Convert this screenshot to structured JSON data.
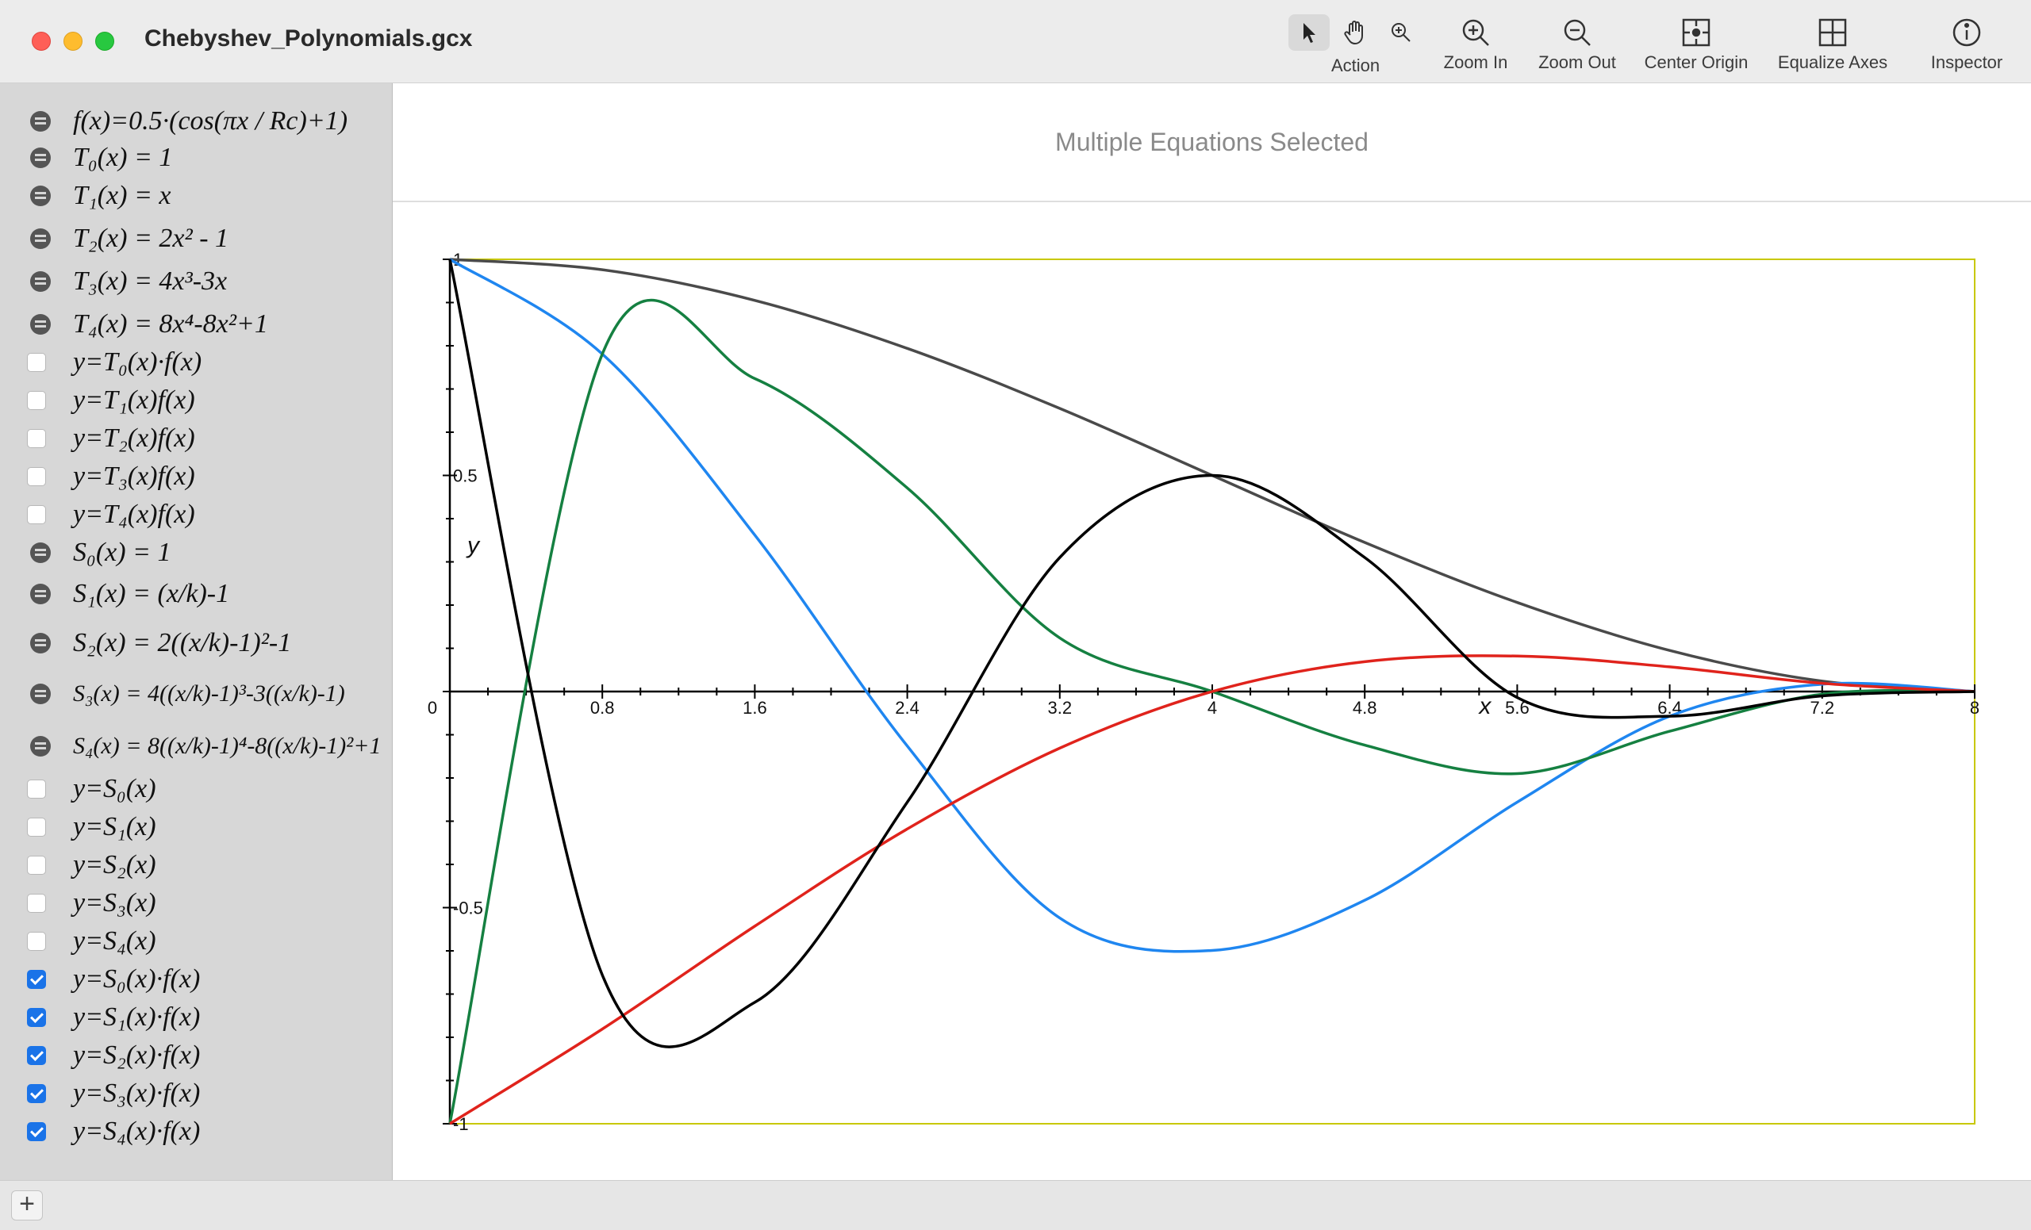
{
  "window": {
    "title": "Chebyshev_Polynomials.gcx"
  },
  "toolbar": {
    "action_label": "Action",
    "zoom_in_label": "Zoom In",
    "zoom_out_label": "Zoom Out",
    "center_origin_label": "Center Origin",
    "equalize_axes_label": "Equalize Axes",
    "inspector_label": "Inspector"
  },
  "sidebar": {
    "equations": [
      {
        "control": "remove",
        "text": "f(x)=0.5·(cos(πx / Rc)+1)"
      },
      {
        "control": "remove",
        "text": "T₀(x) = 1"
      },
      {
        "control": "remove",
        "text": "T₁(x) = x"
      },
      {
        "control": "remove",
        "text": "T₂(x) = 2x² - 1"
      },
      {
        "control": "remove",
        "text": "T₃(x) = 4x³-3x"
      },
      {
        "control": "remove",
        "text": "T₄(x) = 8x⁴-8x²+1"
      },
      {
        "control": "checkbox",
        "checked": false,
        "text": "y=T₀(x)·f(x)"
      },
      {
        "control": "checkbox",
        "checked": false,
        "text": "y=T₁(x)f(x)"
      },
      {
        "control": "checkbox",
        "checked": false,
        "text": "y=T₂(x)f(x)"
      },
      {
        "control": "checkbox",
        "checked": false,
        "text": "y=T₃(x)f(x)"
      },
      {
        "control": "checkbox",
        "checked": false,
        "text": "y=T₄(x)f(x)"
      },
      {
        "control": "remove",
        "text": "S₀(x) = 1"
      },
      {
        "control": "remove",
        "text": "S₁(x) = (x/k)-1"
      },
      {
        "control": "remove",
        "text": "S₂(x) = 2((x/k)-1)²-1"
      },
      {
        "control": "remove",
        "text": "S₃(x) = 4((x/k)-1)³-3((x/k)-1)"
      },
      {
        "control": "remove",
        "text": "S₄(x) = 8((x/k)-1)⁴-8((x/k)-1)²+1"
      },
      {
        "control": "checkbox",
        "checked": false,
        "text": "y=S₀(x)"
      },
      {
        "control": "checkbox",
        "checked": false,
        "text": "y=S₁(x)"
      },
      {
        "control": "checkbox",
        "checked": false,
        "text": "y=S₂(x)"
      },
      {
        "control": "checkbox",
        "checked": false,
        "text": "y=S₃(x)"
      },
      {
        "control": "checkbox",
        "checked": false,
        "text": "y=S₄(x)"
      },
      {
        "control": "checkbox",
        "checked": true,
        "text": "y=S₀(x)·f(x)"
      },
      {
        "control": "checkbox",
        "checked": true,
        "text": "y=S₁(x)·f(x)"
      },
      {
        "control": "checkbox",
        "checked": true,
        "text": "y=S₂(x)·f(x)"
      },
      {
        "control": "checkbox",
        "checked": true,
        "text": "y=S₃(x)·f(x)"
      },
      {
        "control": "checkbox",
        "checked": true,
        "text": "y=S₄(x)·f(x)"
      }
    ]
  },
  "main": {
    "header_message": "Multiple Equations Selected"
  },
  "bottom_bar": {
    "add_label": "+"
  },
  "chart_data": {
    "type": "line",
    "xlabel": "x",
    "ylabel": "y",
    "xlim": [
      0,
      8
    ],
    "ylim": [
      -1,
      1
    ],
    "x_ticks": [
      "0",
      "0.8",
      "1.6",
      "2.4",
      "3.2",
      "4",
      "4.8",
      "5.6",
      "6.4",
      "7.2",
      "8"
    ],
    "y_ticks": [
      "1",
      "0.5",
      "-0.5",
      "-1"
    ],
    "params": {
      "Rc": 8,
      "k": 4
    },
    "series": [
      {
        "color": "#4a4a4a",
        "values": [
          [
            0,
            1.0
          ],
          [
            0.8,
            0.976
          ],
          [
            1.6,
            0.905
          ],
          [
            2.4,
            0.794
          ],
          [
            3.2,
            0.655
          ],
          [
            4.0,
            0.5
          ],
          [
            4.8,
            0.345
          ],
          [
            5.6,
            0.206
          ],
          [
            6.4,
            0.095
          ],
          [
            7.2,
            0.024
          ],
          [
            8.0,
            0.0
          ]
        ]
      },
      {
        "color": "#1f86f0",
        "values": [
          [
            0,
            1.0
          ],
          [
            0.8,
            0.781
          ],
          [
            1.6,
            0.362
          ],
          [
            2.4,
            -0.126
          ],
          [
            3.2,
            -0.524
          ],
          [
            4.0,
            -0.599
          ],
          [
            4.8,
            -0.483
          ],
          [
            5.6,
            -0.256
          ],
          [
            6.4,
            -0.057
          ],
          [
            7.2,
            0.017
          ],
          [
            8.0,
            0.0
          ]
        ]
      },
      {
        "color": "#158041",
        "values": [
          [
            0,
            -1.0
          ],
          [
            0.8,
            0.781
          ],
          [
            1.6,
            0.724
          ],
          [
            2.4,
            0.471
          ],
          [
            3.2,
            0.124
          ],
          [
            4.0,
            0.0
          ],
          [
            4.8,
            -0.124
          ],
          [
            5.6,
            -0.19
          ],
          [
            6.4,
            -0.092
          ],
          [
            7.2,
            -0.006
          ],
          [
            8.0,
            0.0
          ]
        ]
      },
      {
        "color": "#e0231c",
        "values": [
          [
            0,
            -1.0
          ],
          [
            0.8,
            -0.781
          ],
          [
            1.6,
            -0.543
          ],
          [
            2.4,
            -0.318
          ],
          [
            3.2,
            -0.131
          ],
          [
            4.0,
            0.0
          ],
          [
            4.8,
            0.069
          ],
          [
            5.6,
            0.082
          ],
          [
            6.4,
            0.057
          ],
          [
            7.2,
            0.019
          ],
          [
            8.0,
            0.0
          ]
        ]
      },
      {
        "color": "#000000",
        "values": [
          [
            0,
            1.0
          ],
          [
            0.8,
            -0.656
          ],
          [
            1.6,
            -0.719
          ],
          [
            2.4,
            -0.256
          ],
          [
            3.2,
            0.31
          ],
          [
            4.0,
            0.5
          ],
          [
            4.8,
            0.31
          ],
          [
            5.6,
            -0.014
          ],
          [
            6.4,
            -0.057
          ],
          [
            7.2,
            -0.01
          ],
          [
            8.0,
            0.0
          ]
        ]
      }
    ]
  }
}
